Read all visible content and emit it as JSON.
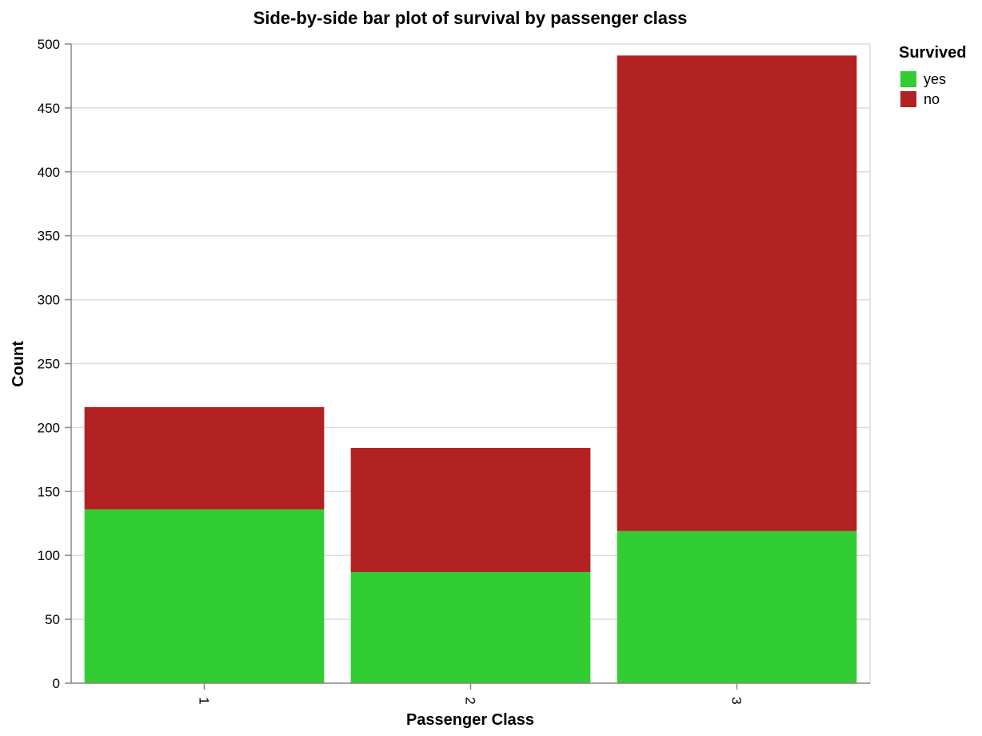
{
  "chart_data": {
    "type": "bar",
    "stacked": true,
    "title": "Side-by-side bar plot of survival by passenger class",
    "xlabel": "Passenger Class",
    "ylabel": "Count",
    "categories": [
      "1",
      "2",
      "3"
    ],
    "series": [
      {
        "name": "yes",
        "color": "#32cd32",
        "values": [
          136,
          87,
          119
        ]
      },
      {
        "name": "no",
        "color": "#b22222",
        "values": [
          80,
          97,
          372
        ]
      }
    ],
    "ylim": [
      0,
      500
    ],
    "yticks": [
      "0",
      "50",
      "100",
      "150",
      "200",
      "250",
      "300",
      "350",
      "400",
      "450",
      "500"
    ],
    "grid": true,
    "legend": {
      "title": "Survived",
      "position": "top-right"
    }
  }
}
